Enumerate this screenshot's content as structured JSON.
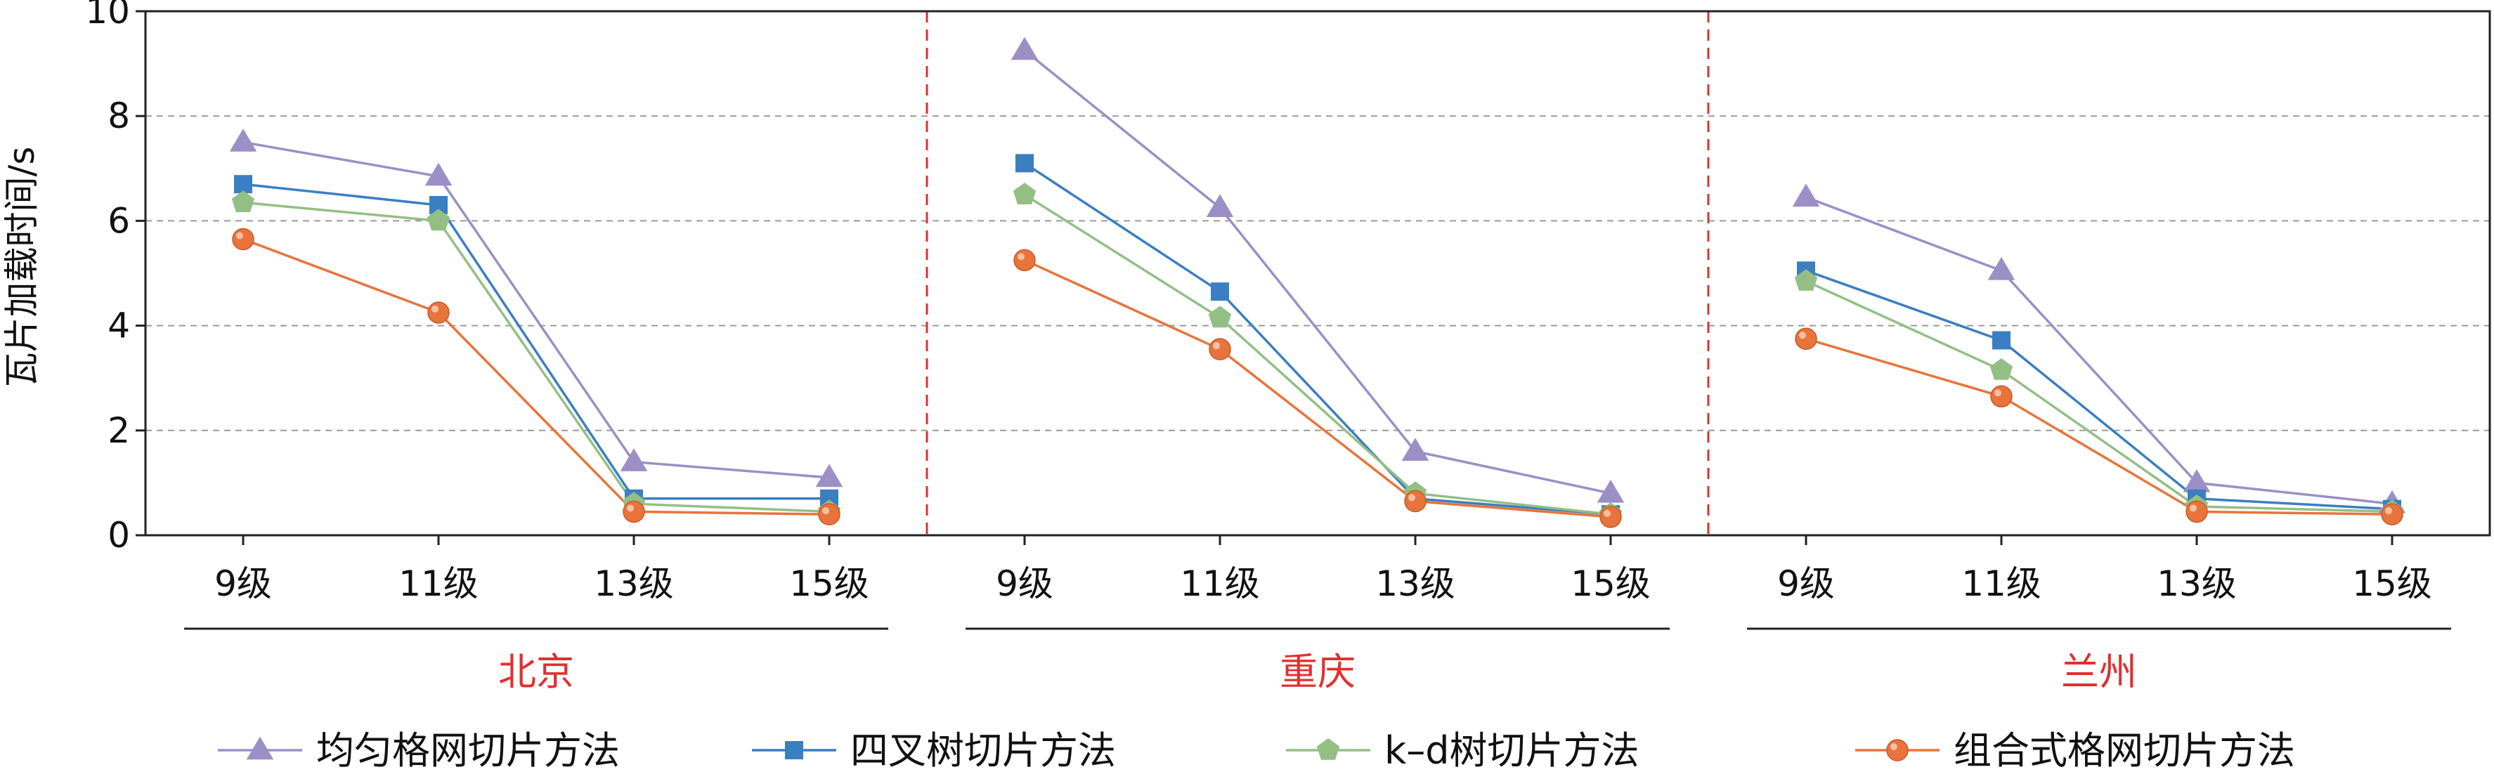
{
  "chart_data": {
    "type": "line",
    "ylabel": "瓦片加载时间/s",
    "ylim": [
      0,
      10
    ],
    "yticks": [
      0,
      2,
      4,
      6,
      8,
      10
    ],
    "grid": "horizontal-dashed",
    "legend_position": "bottom",
    "groups": [
      {
        "name": "北京",
        "categories": [
          "9级",
          "11级",
          "13级",
          "15级"
        ]
      },
      {
        "name": "重庆",
        "categories": [
          "9级",
          "11级",
          "13级",
          "15级"
        ]
      },
      {
        "name": "兰州",
        "categories": [
          "9级",
          "11级",
          "13级",
          "15级"
        ]
      }
    ],
    "series": [
      {
        "name": "均匀格网切片方法",
        "color": "#9b8fc6",
        "marker": "triangle",
        "values": [
          [
            7.5,
            6.85,
            1.4,
            1.1
          ],
          [
            9.25,
            6.25,
            1.6,
            0.8
          ],
          [
            6.45,
            5.05,
            1.0,
            0.6
          ]
        ]
      },
      {
        "name": "四叉树切片方法",
        "color": "#3a7fc1",
        "marker": "square",
        "values": [
          [
            6.7,
            6.3,
            0.7,
            0.7
          ],
          [
            7.1,
            4.65,
            0.7,
            0.4
          ],
          [
            5.05,
            3.72,
            0.7,
            0.5
          ]
        ]
      },
      {
        "name": "k–d树切片方法",
        "color": "#93bf85",
        "marker": "pentagon",
        "values": [
          [
            6.35,
            6.0,
            0.6,
            0.45
          ],
          [
            6.5,
            4.15,
            0.8,
            0.4
          ],
          [
            4.85,
            3.15,
            0.55,
            0.45
          ]
        ]
      },
      {
        "name": "组合式格网切片方法",
        "color": "#e8743b",
        "marker": "circle",
        "values": [
          [
            5.65,
            4.25,
            0.45,
            0.4
          ],
          [
            5.25,
            3.55,
            0.65,
            0.35
          ],
          [
            3.75,
            2.65,
            0.45,
            0.4
          ]
        ]
      }
    ]
  }
}
